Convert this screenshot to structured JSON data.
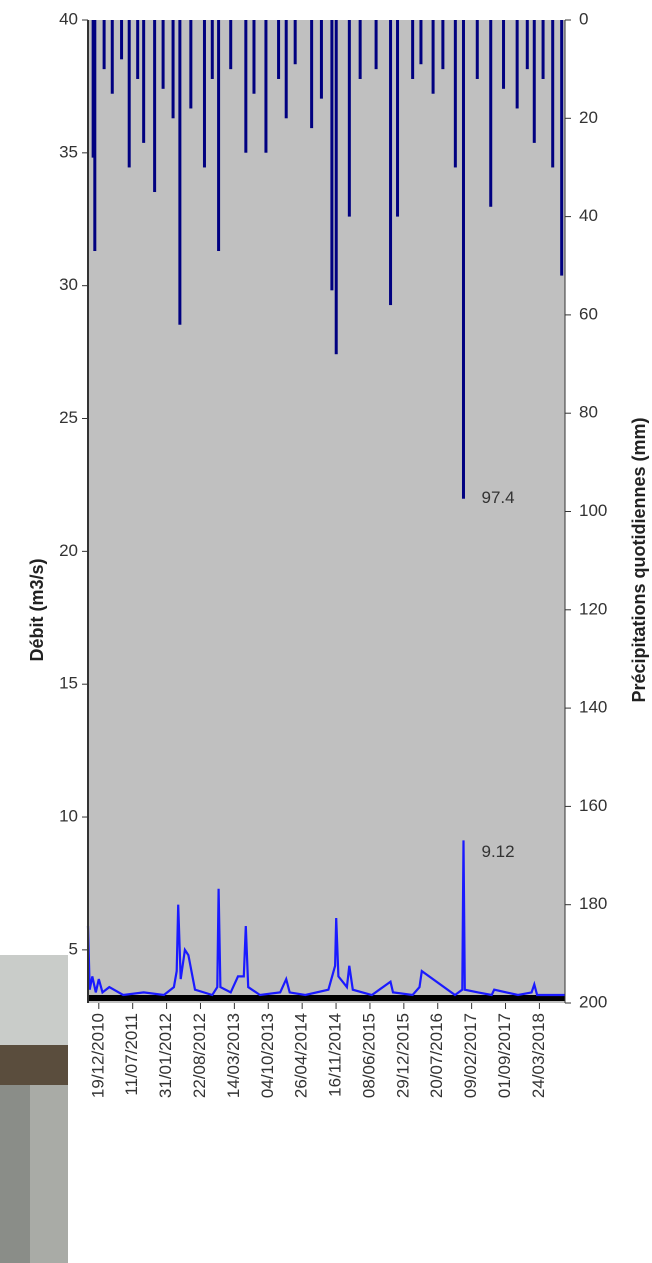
{
  "chart_data": {
    "type": "bar-line",
    "y_label": "Débit (m3/s)",
    "y2_label": "Précipitations quotidiennes (mm)",
    "xlim": [
      "15/10/2010",
      "25/08/2018"
    ],
    "xticks": [
      "19/12/2010",
      "11/07/2011",
      "31/01/2012",
      "22/08/2012",
      "14/03/2013",
      "04/10/2013",
      "26/04/2014",
      "16/11/2014",
      "08/06/2015",
      "29/12/2015",
      "20/07/2016",
      "09/02/2017",
      "01/09/2017",
      "24/03/2018"
    ],
    "ylim": [
      3,
      40
    ],
    "yticks": [
      5,
      10,
      15,
      20,
      25,
      30,
      35,
      40
    ],
    "y2lim": [
      0,
      200
    ],
    "y2ticks": [
      0,
      20,
      40,
      60,
      80,
      100,
      120,
      140,
      160,
      180,
      200
    ],
    "y2_inverted": true,
    "series": [
      {
        "name": "Précipitations",
        "type": "bar",
        "axis": "y2",
        "color": "#000080",
        "x": [
          "15/11/2010",
          "25/11/2010",
          "20/01/2011",
          "10/03/2011",
          "05/05/2011",
          "20/06/2011",
          "10/08/2011",
          "15/09/2011",
          "20/11/2011",
          "10/01/2012",
          "10/03/2012",
          "20/04/2012",
          "25/06/2012",
          "15/09/2012",
          "01/11/2012",
          "09/12/2012",
          "20/02/2013",
          "22/05/2013",
          "10/07/2013",
          "20/09/2013",
          "05/12/2013",
          "20/01/2014",
          "15/03/2014",
          "22/06/2014",
          "20/08/2014",
          "22/10/2014",
          "17/11/2014",
          "04/02/2015",
          "10/04/2015",
          "15/07/2015",
          "10/10/2015",
          "21/11/2015",
          "20/02/2016",
          "10/04/2016",
          "22/06/2016",
          "20/08/2016",
          "03/11/2016",
          "22/12/2016",
          "15/03/2017",
          "04/06/2017",
          "20/08/2017",
          "10/11/2017",
          "10/01/2018",
          "21/02/2018",
          "15/04/2018",
          "12/06/2018",
          "05/08/2018"
        ],
        "values": [
          28,
          47,
          10,
          15,
          8,
          30,
          12,
          25,
          35,
          14,
          20,
          62,
          18,
          30,
          12,
          47,
          10,
          27,
          15,
          27,
          12,
          20,
          9,
          22,
          16,
          55,
          68,
          40,
          12,
          10,
          58,
          40,
          12,
          9,
          15,
          10,
          30,
          97.4,
          12,
          38,
          14,
          18,
          10,
          25,
          12,
          30,
          52
        ],
        "value_labels": {
          "37": "97.4"
        }
      },
      {
        "name": "Débit",
        "type": "line",
        "axis": "y",
        "color": "#1a1aff",
        "x": [
          "15/10/2010",
          "25/10/2010",
          "10/11/2010",
          "01/12/2010",
          "19/12/2010",
          "10/01/2011",
          "20/02/2011",
          "15/05/2011",
          "15/09/2011",
          "15/01/2012",
          "15/03/2012",
          "01/04/2012",
          "10/04/2012",
          "25/04/2012",
          "20/05/2012",
          "10/06/2012",
          "20/07/2012",
          "01/11/2012",
          "01/12/2012",
          "09/12/2012",
          "20/12/2012",
          "20/02/2013",
          "05/04/2013",
          "10/05/2013",
          "22/05/2013",
          "05/06/2013",
          "15/08/2013",
          "15/12/2013",
          "20/01/2014",
          "10/02/2014",
          "15/05/2014",
          "01/10/2014",
          "10/11/2014",
          "17/11/2014",
          "30/11/2014",
          "20/01/2015",
          "04/02/2015",
          "25/02/2015",
          "20/06/2015",
          "10/10/2015",
          "25/10/2015",
          "20/02/2016",
          "01/04/2016",
          "15/04/2016",
          "01/11/2016",
          "15/12/2016",
          "22/12/2016",
          "30/12/2016",
          "20/03/2017",
          "10/06/2017",
          "25/06/2017",
          "15/11/2017",
          "05/02/2018",
          "21/02/2018",
          "10/03/2018",
          "25/08/2018"
        ],
        "values": [
          5.9,
          3.5,
          4.0,
          3.4,
          3.9,
          3.4,
          3.6,
          3.3,
          3.4,
          3.3,
          3.6,
          4.2,
          6.7,
          3.9,
          5.0,
          4.8,
          3.5,
          3.3,
          3.6,
          7.3,
          3.6,
          3.4,
          4.0,
          4.0,
          5.9,
          3.6,
          3.3,
          3.4,
          3.9,
          3.4,
          3.3,
          3.5,
          4.4,
          6.2,
          4.0,
          3.6,
          4.4,
          3.5,
          3.3,
          3.8,
          3.4,
          3.3,
          3.6,
          4.2,
          3.3,
          3.5,
          9.12,
          3.5,
          3.4,
          3.3,
          3.5,
          3.3,
          3.4,
          3.7,
          3.3,
          3.3
        ],
        "value_labels": {
          "46": "9.12"
        }
      }
    ]
  }
}
